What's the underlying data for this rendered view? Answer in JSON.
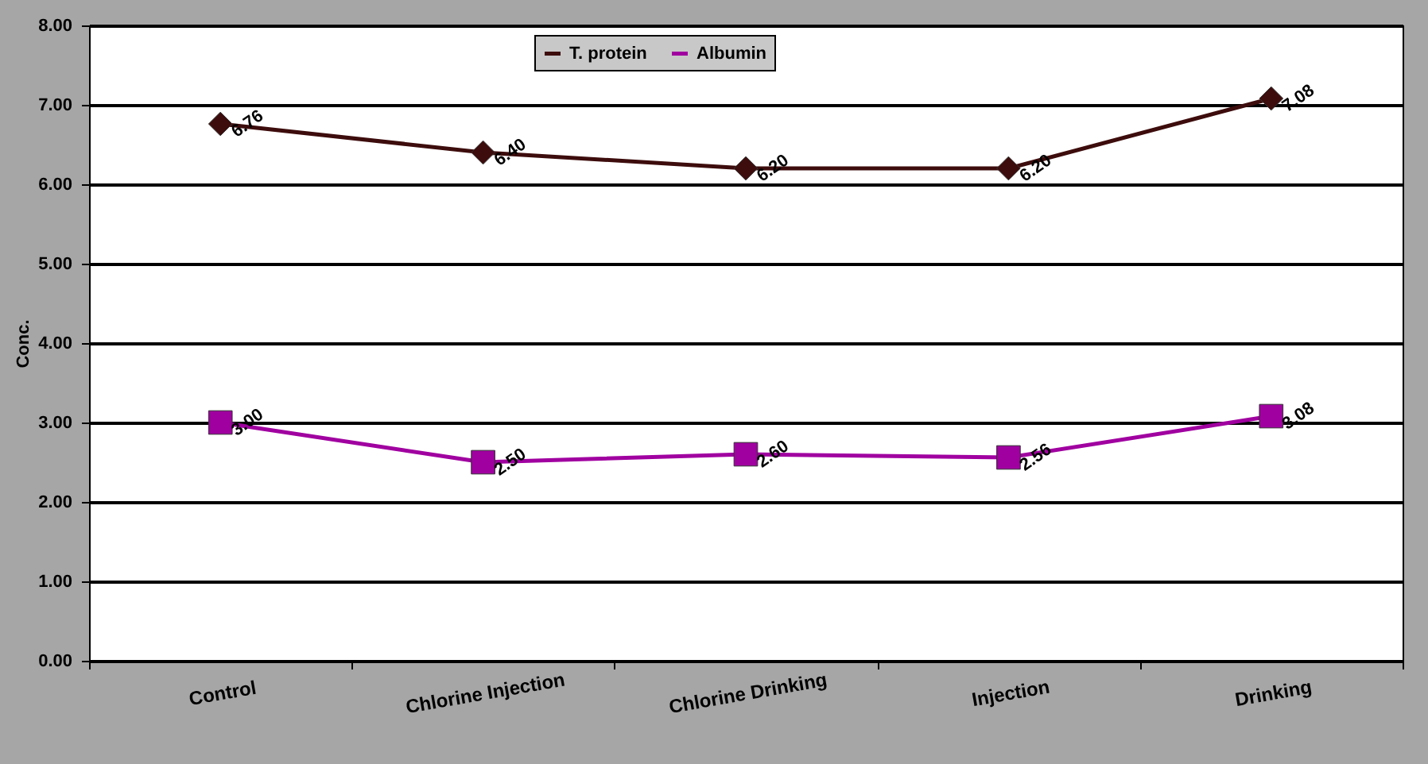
{
  "chart_data": {
    "type": "line",
    "ylabel": "Conc.",
    "categories": [
      "Control",
      "Chlorine Injection",
      "Chlorine Drinking",
      "Injection",
      "Drinking"
    ],
    "series": [
      {
        "name": "T. protein",
        "color": "#3d0c0c",
        "marker": "diamond",
        "values": [
          6.76,
          6.4,
          6.2,
          6.2,
          7.08
        ],
        "value_labels": [
          "6.76",
          "6.40",
          "6.20",
          "6.20",
          "7.08"
        ]
      },
      {
        "name": "Albumin",
        "color": "#a000a0",
        "marker": "square",
        "values": [
          3.0,
          2.5,
          2.6,
          2.56,
          3.08
        ],
        "value_labels": [
          "3.00",
          "2.50",
          "2.60",
          "2.56",
          "3.08"
        ]
      }
    ],
    "ylim": [
      0,
      8
    ],
    "yticks": [
      {
        "value": 0,
        "label": "0.00"
      },
      {
        "value": 1,
        "label": "1.00"
      },
      {
        "value": 2,
        "label": "2.00"
      },
      {
        "value": 3,
        "label": "3.00"
      },
      {
        "value": 4,
        "label": "4.00"
      },
      {
        "value": 5,
        "label": "5.00"
      },
      {
        "value": 6,
        "label": "6.00"
      },
      {
        "value": 7,
        "label": "7.00"
      },
      {
        "value": 8,
        "label": "8.00"
      }
    ],
    "grid": "y",
    "legend": "top",
    "line_style": "solid"
  }
}
